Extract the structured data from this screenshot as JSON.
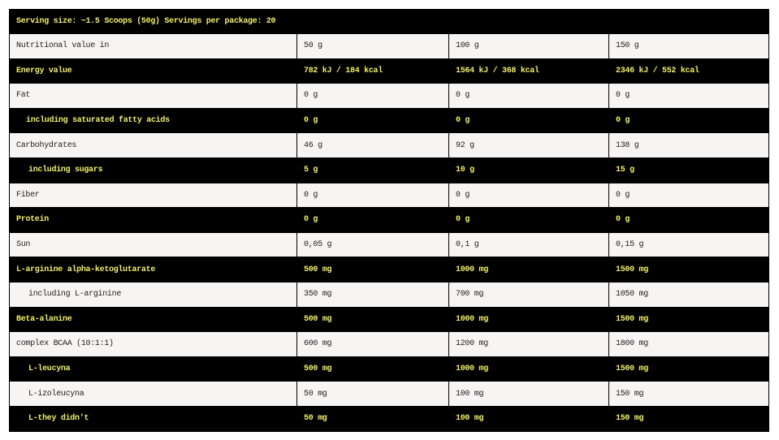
{
  "header": "Serving size: ~1.5 Scoops (50g) Servings per package: 20",
  "colors": {
    "dark_bg": "#000000",
    "light_bg": "#f7f4f4",
    "accent_text": "#f2f06a",
    "light_text": "#222222"
  },
  "rows": [
    {
      "label": "Nutritional value in",
      "indent": 0,
      "style": "light",
      "values": [
        "50 g",
        "100 g",
        "150 g"
      ]
    },
    {
      "label": "Energy value",
      "indent": 0,
      "style": "dark",
      "values": [
        "782 kJ / 184 kcal",
        "1564 kJ / 368 kcal",
        "2346 kJ / 552 kcal"
      ]
    },
    {
      "label": "Fat",
      "indent": 0,
      "style": "light",
      "values": [
        "0 g",
        "0 g",
        "0 g"
      ]
    },
    {
      "label": "including saturated fatty acids",
      "indent": 1,
      "style": "dark",
      "values": [
        "0 g",
        "0 g",
        "0 g"
      ]
    },
    {
      "label": "Carbohydrates",
      "indent": 0,
      "style": "light",
      "values": [
        "46 g",
        "92 g",
        "138 g"
      ]
    },
    {
      "label": "including sugars",
      "indent": 2,
      "style": "dark",
      "values": [
        "5 g",
        "10 g",
        "15 g"
      ]
    },
    {
      "label": "Fiber",
      "indent": 0,
      "style": "light",
      "values": [
        "0 g",
        "0 g",
        "0 g"
      ]
    },
    {
      "label": "Protein",
      "indent": 0,
      "style": "dark",
      "values": [
        "0 g",
        "0 g",
        "0 g"
      ]
    },
    {
      "label": "Sun",
      "indent": 0,
      "style": "light",
      "values": [
        "0,05 g",
        "0,1 g",
        "0,15 g"
      ]
    },
    {
      "label": "L-arginine alpha-ketoglutarate",
      "indent": 0,
      "style": "dark",
      "values": [
        "500 mg",
        "1000 mg",
        "1500 mg"
      ]
    },
    {
      "label": "including L-arginine",
      "indent": 2,
      "style": "light",
      "values": [
        "350 mg",
        "700 mg",
        "1050 mg"
      ]
    },
    {
      "label": "Beta-alanine",
      "indent": 0,
      "style": "dark",
      "values": [
        "500 mg",
        "1000 mg",
        "1500 mg"
      ]
    },
    {
      "label": "complex BCAA (10:1:1)",
      "indent": 0,
      "style": "light",
      "values": [
        "600 mg",
        "1200 mg",
        "1800 mg"
      ]
    },
    {
      "label": "L-leucyna",
      "indent": 2,
      "style": "dark",
      "values": [
        "500 mg",
        "1000 mg",
        "1500 mg"
      ]
    },
    {
      "label": "L-izoleucyna",
      "indent": 2,
      "style": "light",
      "values": [
        "50 mg",
        "100 mg",
        "150 mg"
      ]
    },
    {
      "label": "L-they didn't",
      "indent": 2,
      "style": "dark",
      "values": [
        "50 mg",
        "100 mg",
        "150 mg"
      ]
    }
  ]
}
